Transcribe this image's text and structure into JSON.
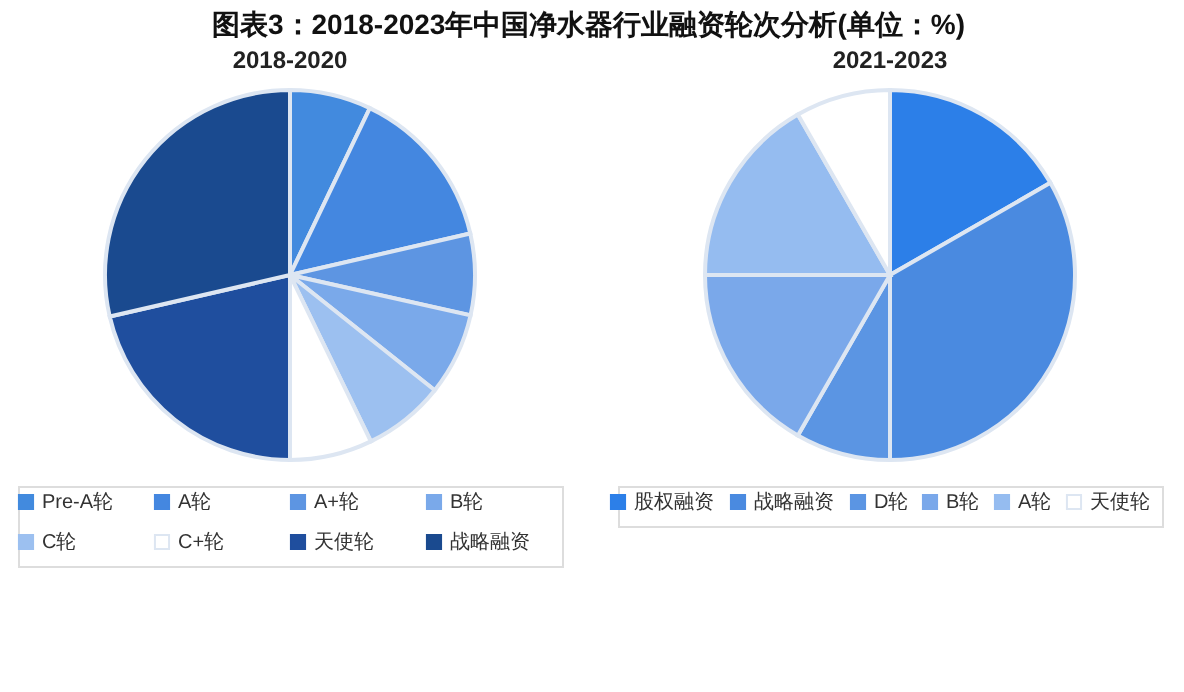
{
  "chart_data": [
    {
      "type": "pie",
      "title": "图表3：2018-2023年中国净水器行业融资轮次分析(单位：%)",
      "subtitle": "2018-2020",
      "categories": [
        "Pre-A轮",
        "A轮",
        "A+轮",
        "B轮",
        "C轮",
        "C+轮",
        "天使轮",
        "战略融资"
      ],
      "values": [
        7.1,
        14.3,
        7.1,
        7.2,
        7.1,
        7.2,
        21.4,
        28.6
      ],
      "colors": [
        "#428ade",
        "#4487e0",
        "#5d95e2",
        "#7aa9ea",
        "#9cc0f0",
        "#ffffff",
        "#1f4e9e",
        "#1a4a8f"
      ],
      "legend": "bottom"
    },
    {
      "type": "pie",
      "subtitle": "2021-2023",
      "categories": [
        "股权融资",
        "战略融资",
        "D轮",
        "B轮",
        "A轮",
        "天使轮"
      ],
      "values": [
        16.7,
        33.3,
        8.3,
        16.7,
        16.7,
        8.3
      ],
      "colors": [
        "#2c7fe8",
        "#4a8ae0",
        "#5b95e3",
        "#7aa8ea",
        "#95bcf0",
        "#ffffff"
      ],
      "legend": "bottom"
    }
  ]
}
